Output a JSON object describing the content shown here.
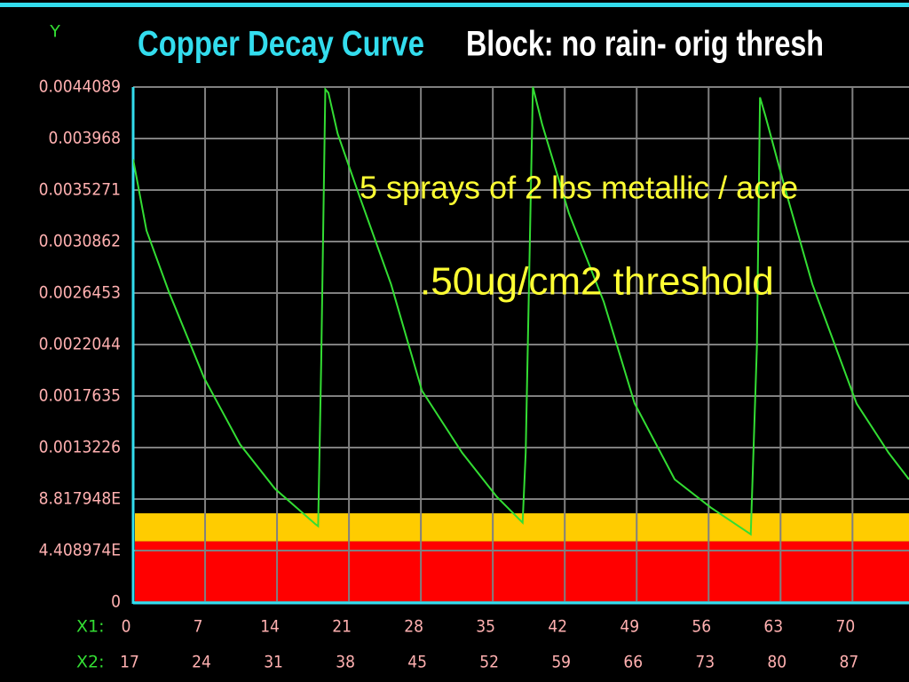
{
  "chart_data": {
    "type": "line",
    "title": "Copper Decay Curve",
    "subtitle": "Block: no rain- orig thresh",
    "y_label": "Y",
    "x_label": "X1:",
    "x2_label": "X2:",
    "annotations": [
      "5 sprays of 2 lbs metallic / acre",
      ".50ug/cm2 threshold"
    ],
    "x": [
      0,
      1.3,
      3.5,
      6.9,
      10.4,
      13.8,
      17.7,
      18.0,
      18.3,
      18.7,
      19.0,
      19.9,
      22.0,
      25.1,
      28.1,
      32.0,
      35.4,
      37.9,
      38.2,
      38.9,
      39.8,
      42.4,
      45.8,
      48.8,
      52.7,
      56.2,
      60.1,
      60.7,
      61.0,
      61.5,
      63.5,
      66.1,
      70.4,
      73.5,
      75.5
    ],
    "values": [
      0.00379,
      0.00318,
      0.00265,
      0.00192,
      0.00135,
      0.00097,
      0.00067,
      0.00065,
      0.00205,
      0.00439,
      0.00436,
      0.00401,
      0.00348,
      0.00272,
      0.00181,
      0.00128,
      0.0009,
      0.00068,
      0.00128,
      0.00441,
      0.00409,
      0.00333,
      0.00257,
      0.0017,
      0.00105,
      0.00081,
      0.00058,
      0.00219,
      0.00432,
      0.00417,
      0.00352,
      0.00272,
      0.0017,
      0.00128,
      0.00105
    ],
    "color": "#33dd33",
    "bands": [
      {
        "from": 0,
        "to": 0.00052,
        "color": "#ff0000"
      },
      {
        "from": 0.00052,
        "to": 0.00076,
        "color": "#ffcc00"
      }
    ],
    "xlim": [
      0,
      75.5
    ],
    "xticks": [
      0,
      7,
      14,
      21,
      28,
      35,
      42,
      49,
      56,
      63,
      70
    ],
    "x2lim": [
      17,
      92.5
    ],
    "x2ticks": [
      17,
      24,
      31,
      38,
      45,
      52,
      59,
      66,
      73,
      80,
      87
    ],
    "ylim": [
      0,
      0.0044089
    ],
    "yticks": [
      0,
      {
        "value": 0.0004408974,
        "label": "4.408974E"
      },
      {
        "value": 0.0008817948,
        "label": "8.817948E"
      },
      0.0013226,
      0.0017635,
      0.0022044,
      0.0026453,
      0.0030862,
      0.0035271,
      0.003968,
      0.0044089
    ],
    "grid": true
  }
}
